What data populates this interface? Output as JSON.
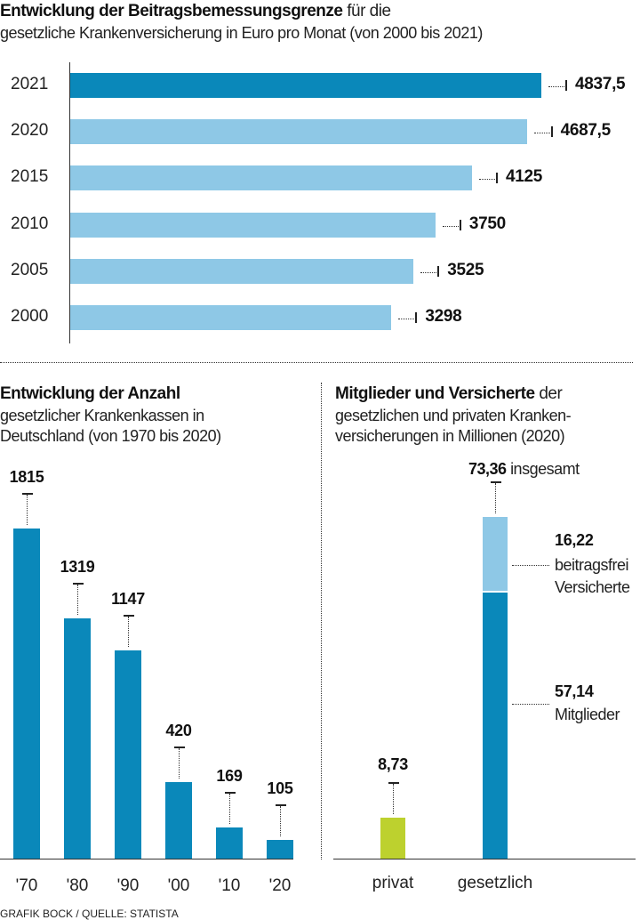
{
  "colors": {
    "dark_blue": "#0a88ba",
    "light_blue": "#8ec8e6",
    "green": "#bdd12e"
  },
  "chart_data": [
    {
      "type": "bar",
      "orientation": "horizontal",
      "title_bold": "Entwicklung der Beitragsbemessungsgrenze",
      "title_rest": " für die",
      "subtitle": "gesetzliche Krankenversicherung in Euro pro Monat (von 2000 bis 2021)",
      "categories": [
        "2021",
        "2020",
        "2015",
        "2010",
        "2005",
        "2000"
      ],
      "values": [
        4837.5,
        4687.5,
        4125,
        3750,
        3525,
        3298
      ],
      "labels": [
        "4837,5",
        "4687,5",
        "4125",
        "3750",
        "3525",
        "3298"
      ],
      "highlight": "2021",
      "xlim": [
        0,
        4837.5
      ]
    },
    {
      "type": "bar",
      "title_bold": "Entwicklung der Anzahl",
      "subtitle_lines": [
        "gesetzlicher Krankenkassen in",
        "Deutschland (von 1970 bis 2020)"
      ],
      "categories": [
        "'70",
        "'80",
        "'90",
        "'00",
        "'10",
        "'20"
      ],
      "values": [
        1815,
        1319,
        1147,
        420,
        169,
        105
      ],
      "ylim": [
        0,
        1815
      ]
    },
    {
      "type": "bar",
      "stacked": true,
      "title_bold": "Mitglieder und Versicherte",
      "title_rest": " der",
      "subtitle_lines": [
        "gesetzlichen und privaten Kranken-",
        "versicherungen in Millionen (2020)"
      ],
      "categories": [
        "privat",
        "gesetzlich"
      ],
      "series": [
        {
          "name": "Mitglieder",
          "values": [
            8.73,
            57.14
          ],
          "labels": [
            "8,73",
            "57,14"
          ]
        },
        {
          "name": "beitragsfrei Versicherte",
          "values": [
            0,
            16.22
          ],
          "labels": [
            "",
            "16,22"
          ]
        }
      ],
      "total": {
        "value": 73.36,
        "label": "73,36",
        "text": "insgesamt"
      },
      "annot_beitragsfrei": [
        "beitragsfrei",
        "Versicherte"
      ],
      "annot_mitglieder": "Mitglieder",
      "ylim": [
        0,
        73.36
      ]
    }
  ],
  "footer": "GRAFIK BOCK  / QUELLE: STATISTA"
}
